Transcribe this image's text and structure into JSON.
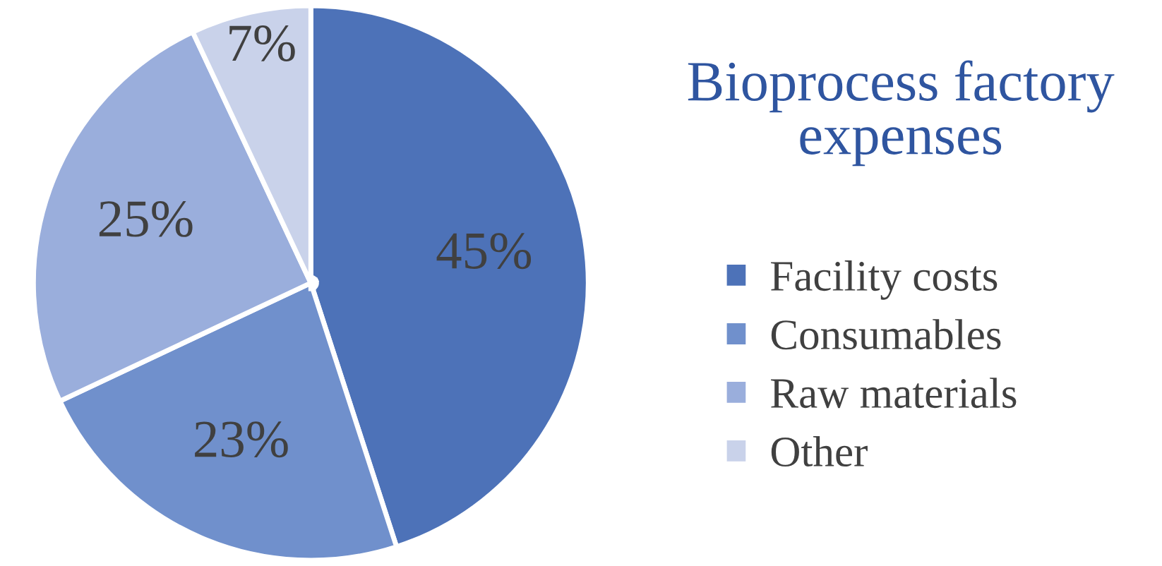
{
  "chart_data": {
    "type": "pie",
    "title": "Bioprocess factory expenses",
    "categories": [
      "Facility costs",
      "Consumables",
      "Raw materials",
      "Other"
    ],
    "values": [
      45,
      23,
      25,
      7
    ],
    "value_labels": [
      "45%",
      "23%",
      "25%",
      "7%"
    ],
    "colors": [
      "#4d72b8",
      "#7090cc",
      "#9aaedc",
      "#c9d2ea"
    ],
    "legend": "right"
  }
}
